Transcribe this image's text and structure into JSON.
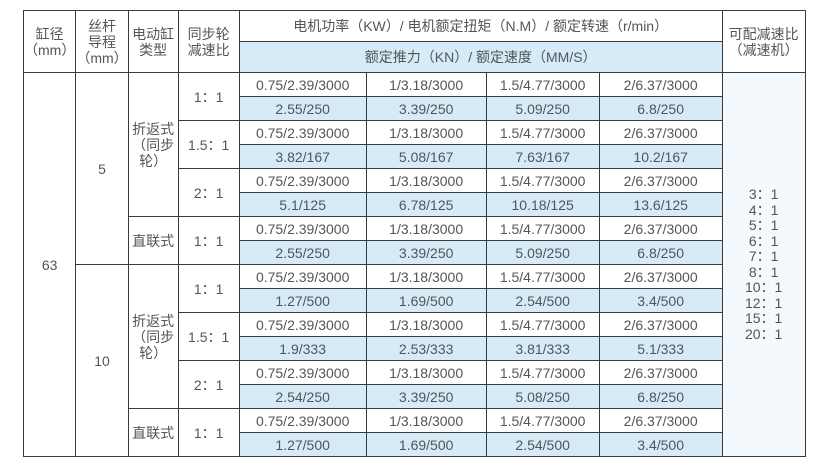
{
  "header": {
    "bore": "缸径\n（mm）",
    "lead": "丝杆\n导程\n（mm）",
    "type": "电动缸\n类型",
    "ratio": "同步轮\n减速比",
    "motor": "电机功率（KW）/ 电机额定扭矩（N.M）/ 额定转速（r/min）",
    "thrust": "额定推力（KN）/ 额定速度（MM/S）",
    "reducer": "可配减速比\n（减速机）"
  },
  "bore": "63",
  "reducer_ratios": [
    "3：1",
    "4：1",
    "5：1",
    "6：1",
    "7：1",
    "8：1",
    "10：1",
    "12：1",
    "15：1",
    "20：1"
  ],
  "groups": [
    {
      "lead": "5",
      "blocks": [
        {
          "type": "折返式\n（同步\n轮）",
          "rows": [
            {
              "ratio": "1：1",
              "motor": [
                "0.75/2.39/3000",
                "1/3.18/3000",
                "1.5/4.77/3000",
                "2/6.37/3000"
              ],
              "thrust": [
                "2.55/250",
                "3.39/250",
                "5.09/250",
                "6.8/250"
              ]
            },
            {
              "ratio": "1.5：1",
              "motor": [
                "0.75/2.39/3000",
                "1/3.18/3000",
                "1.5/4.77/3000",
                "2/6.37/3000"
              ],
              "thrust": [
                "3.82/167",
                "5.08/167",
                "7.63/167",
                "10.2/167"
              ]
            },
            {
              "ratio": "2：1",
              "motor": [
                "0.75/2.39/3000",
                "1/3.18/3000",
                "1.5/4.77/3000",
                "2/6.37/3000"
              ],
              "thrust": [
                "5.1/125",
                "6.78/125",
                "10.18/125",
                "13.6/125"
              ]
            }
          ]
        },
        {
          "type": "直联式",
          "rows": [
            {
              "ratio": "1：1",
              "motor": [
                "0.75/2.39/3000",
                "1/3.18/3000",
                "1.5/4.77/3000",
                "2/6.37/3000"
              ],
              "thrust": [
                "2.55/250",
                "3.39/250",
                "5.09/250",
                "6.8/250"
              ]
            }
          ]
        }
      ]
    },
    {
      "lead": "10",
      "blocks": [
        {
          "type": "折返式\n（同步\n轮）",
          "rows": [
            {
              "ratio": "1：1",
              "motor": [
                "0.75/2.39/3000",
                "1/3.18/3000",
                "1.5/4.77/3000",
                "2/6.37/3000"
              ],
              "thrust": [
                "1.27/500",
                "1.69/500",
                "2.54/500",
                "3.4/500"
              ]
            },
            {
              "ratio": "1.5：1",
              "motor": [
                "0.75/2.39/3000",
                "1/3.18/3000",
                "1.5/4.77/3000",
                "2/6.37/3000"
              ],
              "thrust": [
                "1.9/333",
                "2.53/333",
                "3.81/333",
                "5.1/333"
              ]
            },
            {
              "ratio": "2：1",
              "motor": [
                "0.75/2.39/3000",
                "1/3.18/3000",
                "1.5/4.77/3000",
                "2/6.37/3000"
              ],
              "thrust": [
                "2.54/250",
                "3.39/250",
                "5.08/250",
                "6.8/250"
              ]
            }
          ]
        },
        {
          "type": "直联式",
          "rows": [
            {
              "ratio": "1：1",
              "motor": [
                "0.75/2.39/3000",
                "1/3.18/3000",
                "1.5/4.77/3000",
                "2/6.37/3000"
              ],
              "thrust": [
                "1.27/500",
                "1.69/500",
                "2.54/500",
                "3.4/500"
              ]
            }
          ]
        }
      ]
    }
  ],
  "colors": {
    "blue_cell": "#d5ebf8",
    "border": "#3a3a3a",
    "text": "#555555"
  }
}
